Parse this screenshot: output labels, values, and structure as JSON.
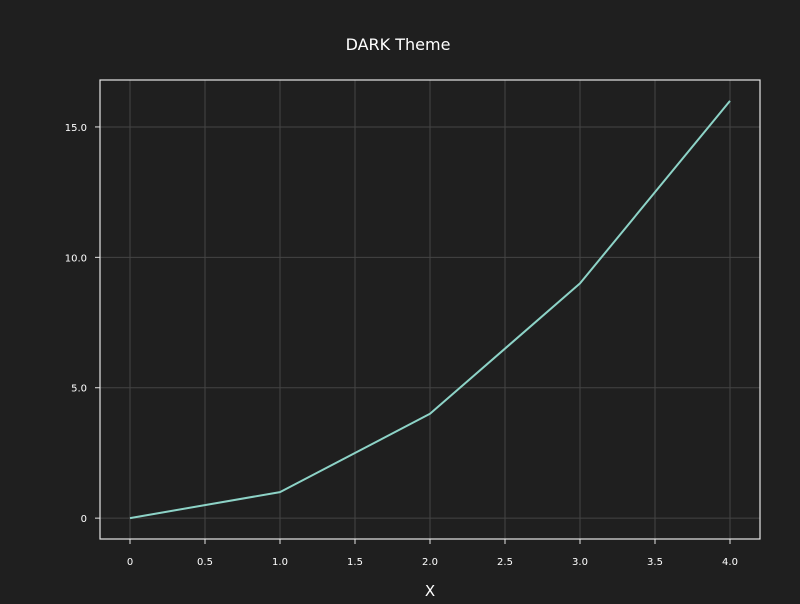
{
  "chart_data": {
    "type": "line",
    "title": "DARK Theme",
    "xlabel": "X",
    "ylabel": "",
    "x": [
      0,
      1,
      2,
      3,
      4
    ],
    "series": [
      {
        "values": [
          0,
          1,
          4,
          9,
          16
        ],
        "color": "#8dd3c7"
      }
    ],
    "xlim": [
      -0.2,
      4.2
    ],
    "ylim": [
      -0.8,
      16.8
    ],
    "xticks": [
      0,
      0.5,
      1.0,
      1.5,
      2.0,
      2.5,
      3.0,
      3.5,
      4.0
    ],
    "xtick_labels": [
      "0",
      "0.5",
      "1.0",
      "1.5",
      "2.0",
      "2.5",
      "3.0",
      "3.5",
      "4.0"
    ],
    "yticks": [
      0,
      5,
      10,
      15
    ],
    "ytick_labels": [
      "0",
      "5.0",
      "10.0",
      "15.0"
    ],
    "grid": true,
    "legend": "none"
  },
  "theme": {
    "background": "#1f1f1f",
    "axes_color": "#e6e6e6",
    "grid_color": "#444444",
    "text_color": "#ffffff"
  }
}
